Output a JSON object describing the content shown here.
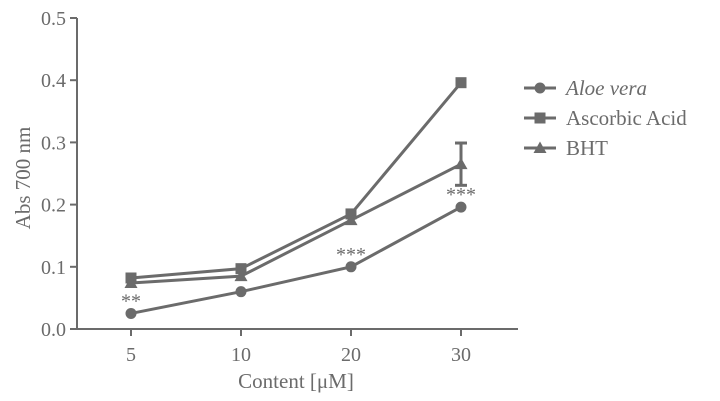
{
  "chart_data": {
    "type": "line",
    "xlabel": "Content [μM]",
    "ylabel": "Abs 700 nm",
    "categories": [
      "5",
      "10",
      "20",
      "30"
    ],
    "ylim": [
      0.0,
      0.5
    ],
    "yticks": [
      "0.0",
      "0.1",
      "0.2",
      "0.3",
      "0.4",
      "0.5"
    ],
    "grid": false,
    "legend_position": "right",
    "color": "#6b6b6b",
    "series": [
      {
        "name": "Aloe vera",
        "marker": "circle",
        "italic": true,
        "values": [
          0.025,
          0.06,
          0.1,
          0.196
        ]
      },
      {
        "name": "Ascorbic Acid",
        "marker": "square",
        "italic": false,
        "values": [
          0.082,
          0.097,
          0.185,
          0.396
        ]
      },
      {
        "name": "BHT",
        "marker": "triangle",
        "italic": false,
        "values": [
          0.074,
          0.085,
          0.175,
          0.265
        ],
        "error": [
          0,
          0,
          0,
          0.034
        ]
      }
    ],
    "annotations": [
      {
        "category": "5",
        "text": "**"
      },
      {
        "category": "20",
        "text": "***"
      },
      {
        "category": "30",
        "text": "***"
      }
    ]
  }
}
